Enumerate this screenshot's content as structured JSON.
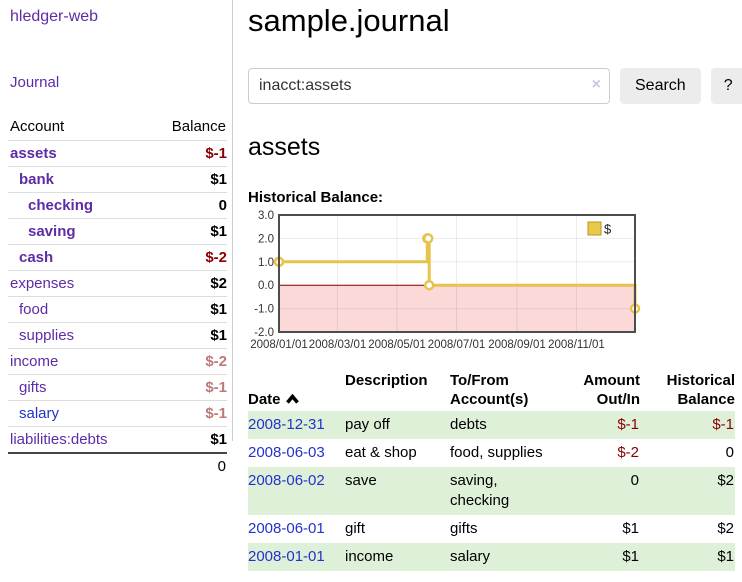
{
  "app": {
    "title": "hledger-web"
  },
  "sidebar": {
    "journal_label": "Journal",
    "account_header": "Account",
    "balance_header": "Balance",
    "accounts": [
      {
        "name": "assets",
        "level": 0,
        "bold": true,
        "balance": "$-1",
        "balance_class": "neg"
      },
      {
        "name": "bank",
        "level": 1,
        "bold": true,
        "balance": "$1",
        "balance_class": ""
      },
      {
        "name": "checking",
        "level": 2,
        "bold": true,
        "balance": "0",
        "balance_class": ""
      },
      {
        "name": "saving",
        "level": 2,
        "bold": true,
        "balance": "$1",
        "balance_class": ""
      },
      {
        "name": "cash",
        "level": 1,
        "bold": true,
        "balance": "$-2",
        "balance_class": "neg"
      },
      {
        "name": "expenses",
        "level": 0,
        "bold": false,
        "balance": "$2",
        "balance_class": ""
      },
      {
        "name": "food",
        "level": 1,
        "bold": false,
        "balance": "$1",
        "balance_class": ""
      },
      {
        "name": "supplies",
        "level": 1,
        "bold": false,
        "balance": "$1",
        "balance_class": ""
      },
      {
        "name": "income",
        "level": 0,
        "bold": false,
        "balance": "$-2",
        "balance_class": "fneg"
      },
      {
        "name": "gifts",
        "level": 1,
        "bold": false,
        "balance": "$-1",
        "balance_class": "fneg"
      },
      {
        "name": "salary",
        "level": 1,
        "bold": false,
        "balance": "$-1",
        "balance_class": "fneg",
        "link_color": "blue"
      },
      {
        "name": "liabilities:debts",
        "level": 0,
        "bold": false,
        "balance": "$1",
        "balance_class": ""
      }
    ],
    "total": "0"
  },
  "main": {
    "title": "sample.journal",
    "search": {
      "value": "inacct:assets",
      "clear_icon": "×",
      "button_label": "Search",
      "help_label": "?"
    },
    "account_heading": "assets",
    "chart_label": "Historical Balance:"
  },
  "chart_data": {
    "type": "line",
    "step": true,
    "title": "Historical Balance",
    "x_range": [
      "2008-01-01",
      "2008-12-31"
    ],
    "ylim": [
      -2,
      3
    ],
    "yticks": [
      3.0,
      2.0,
      1.0,
      0.0,
      -1.0,
      -2.0
    ],
    "xticks": [
      "2008/01/01",
      "2008/03/01",
      "2008/05/01",
      "2008/07/01",
      "2008/09/01",
      "2008/11/01"
    ],
    "series": [
      {
        "name": "$",
        "points": [
          [
            "2008-01-01",
            1
          ],
          [
            "2008-06-01",
            2
          ],
          [
            "2008-06-02",
            2
          ],
          [
            "2008-06-03",
            0
          ],
          [
            "2008-12-31",
            -1
          ]
        ]
      }
    ],
    "legend": {
      "label": "$",
      "position": "top-right"
    },
    "colors": {
      "line": "#e7c34d",
      "marker_fill": "#ffffff",
      "negative_area": "#fbd9d9",
      "zero_line": "#8b0000",
      "grid": "rgba(0,0,0,0.08)",
      "border": "#4d4d4d",
      "legend_fill": "#eac948",
      "legend_border": "#b7962b"
    }
  },
  "register": {
    "columns": [
      "Date",
      "Description",
      "To/From\nAccount(s)",
      "Amount\nOut/In",
      "Historical\nBalance"
    ],
    "rows": [
      {
        "date": "2008-12-31",
        "description": "pay off",
        "accounts": "debts",
        "amount": "$-1",
        "amount_class": "neg",
        "balance": "$-1",
        "balance_class": "neg",
        "green": true
      },
      {
        "date": "2008-06-03",
        "description": "eat & shop",
        "accounts": "food, supplies",
        "amount": "$-2",
        "amount_class": "neg",
        "balance": "0",
        "balance_class": "",
        "green": false
      },
      {
        "date": "2008-06-02",
        "description": "save",
        "accounts": "saving, checking",
        "amount": "0",
        "amount_class": "",
        "balance": "$2",
        "balance_class": "",
        "green": true
      },
      {
        "date": "2008-06-01",
        "description": "gift",
        "accounts": "gifts",
        "amount": "$1",
        "amount_class": "",
        "balance": "$2",
        "balance_class": "",
        "green": false
      },
      {
        "date": "2008-01-01",
        "description": "income",
        "accounts": "salary",
        "amount": "$1",
        "amount_class": "",
        "balance": "$1",
        "balance_class": "",
        "green": true
      }
    ]
  }
}
